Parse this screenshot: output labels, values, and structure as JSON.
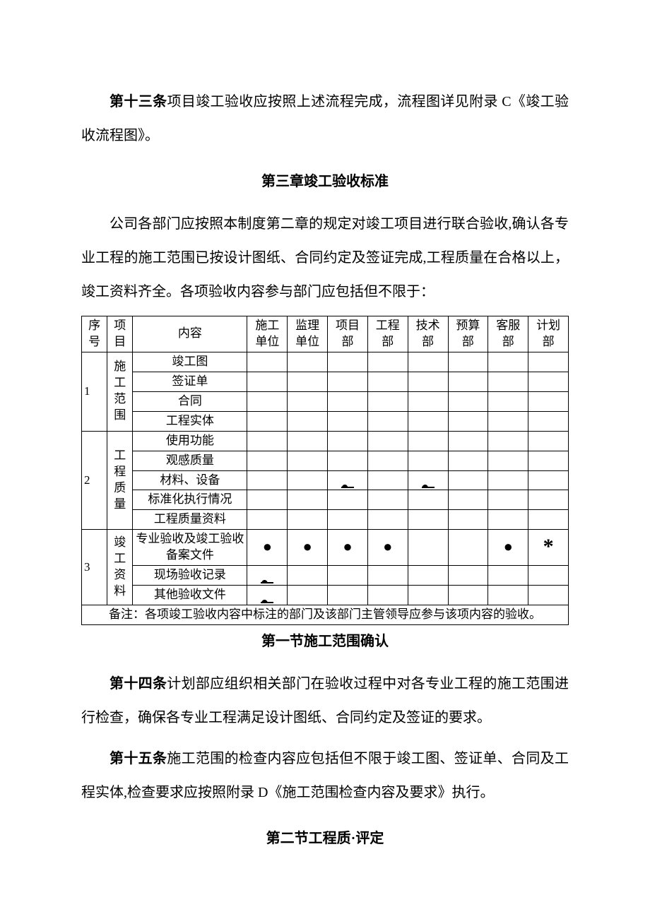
{
  "article13": {
    "label": "第十三条",
    "text": "项目竣工验收应按照上述流程完成，流程图详见附录 C《竣工验收流程图》。"
  },
  "chapter3_title": "第三章竣工验收标准",
  "intro_para": "公司各部门应按照本制度第二章的规定对竣工项目进行联合验收,确认各专业工程的施工范围已按设计图纸、合同约定及签证完成,工程质量在合格以上，竣工资料齐全。各项验收内容参与部门应包括但不限于：",
  "table": {
    "headers": {
      "seq": "序号",
      "item": "项目",
      "content": "内容",
      "dep1": "施工单位",
      "dep2": "监理单位",
      "dep3": "项目部",
      "dep4": "工程部",
      "dep5": "技术部",
      "dep6": "预算部",
      "dep7": "客服部",
      "dep8": "计划部"
    },
    "groups": [
      {
        "seq": "1",
        "item": "施工范围",
        "rows": [
          {
            "content": "竣工图",
            "marks": [
              "",
              "",
              "",
              "",
              "",
              "",
              "",
              ""
            ]
          },
          {
            "content": "签证单",
            "marks": [
              "",
              "",
              "",
              "",
              "",
              "",
              "",
              ""
            ]
          },
          {
            "content": "合同",
            "marks": [
              "",
              "",
              "",
              "",
              "",
              "",
              "",
              ""
            ]
          },
          {
            "content": "工程实体",
            "marks": [
              "",
              "",
              "",
              "",
              "",
              "",
              "",
              ""
            ]
          }
        ]
      },
      {
        "seq": "2",
        "item": "工程质量",
        "rows": [
          {
            "content": "使用功能",
            "marks": [
              "",
              "",
              "",
              "",
              "",
              "",
              "",
              ""
            ]
          },
          {
            "content": "观感质量",
            "marks": [
              "",
              "",
              "",
              "",
              "",
              "",
              "",
              ""
            ]
          },
          {
            "content": "材料、设备",
            "marks": [
              "",
              "",
              "half",
              "",
              "half",
              "",
              "",
              ""
            ]
          },
          {
            "content": "标准化执行情况",
            "marks": [
              "",
              "",
              "",
              "",
              "",
              "",
              "",
              ""
            ]
          },
          {
            "content": "工程质量资料",
            "marks": [
              "",
              "",
              "",
              "",
              "",
              "",
              "",
              ""
            ]
          }
        ]
      },
      {
        "seq": "3",
        "item": "竣工资料",
        "rows": [
          {
            "content": "专业验收及竣工验收备案文件",
            "marks": [
              "dot",
              "dot",
              "dot",
              "dot",
              "",
              "",
              "dot",
              "star"
            ]
          },
          {
            "content": "现场验收记录",
            "marks": [
              "half",
              "",
              "",
              "",
              "",
              "",
              "",
              ""
            ]
          },
          {
            "content": "其他验收文件",
            "marks": [
              "half",
              "",
              "",
              "",
              "",
              "",
              "",
              ""
            ]
          }
        ]
      }
    ],
    "footnote": "备注：各项竣工验收内容中标注的部门及该部门主管领导应参与该项内容的验收。"
  },
  "section1_title": "第一节施工范围确认",
  "article14": {
    "label": "第十四条",
    "text": "计划部应组织相关部门在验收过程中对各专业工程的施工范围进行检查，确保各专业工程满足设计图纸、合同约定及签证的要求。"
  },
  "article15": {
    "label": "第十五条",
    "text": "施工范围的检查内容应包括但不限于竣工图、签证单、合同及工程实体,检查要求应按照附录 D《施工范围检查内容及要求》执行。"
  },
  "section2_title": "第二节工程质·评定"
}
